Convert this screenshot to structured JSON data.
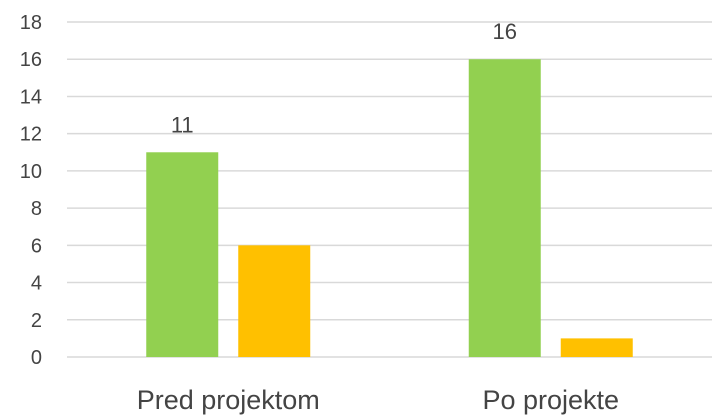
{
  "chart_data": {
    "type": "bar",
    "categories": [
      "Pred projektom",
      "Po projekte"
    ],
    "series": [
      {
        "values": [
          11,
          16
        ],
        "color": "#92d050",
        "data_labels": [
          "11",
          "16"
        ]
      },
      {
        "values": [
          6,
          1
        ],
        "color": "#ffc000",
        "data_labels": [
          "",
          ""
        ]
      }
    ],
    "ylim": [
      0,
      18
    ],
    "yticks": [
      "0",
      "2",
      "4",
      "6",
      "8",
      "10",
      "12",
      "14",
      "16",
      "18"
    ],
    "grid": true,
    "legend": "none"
  }
}
